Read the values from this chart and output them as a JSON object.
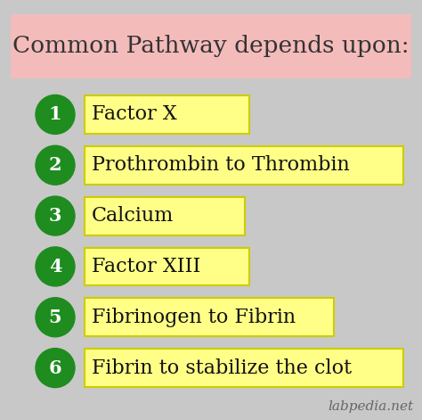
{
  "title": "Common Pathway depends upon:",
  "title_bg": "#F4BBBB",
  "title_color": "#333333",
  "title_fontsize": 19,
  "bg_color": "#C8C8C8",
  "items": [
    "Factor X",
    "Prothrombin to Thrombin",
    "Calcium",
    "Factor XIII",
    "Fibrinogen to Fibrin",
    "Fibrin to stabilize the clot"
  ],
  "item_bg": "#FFFF88",
  "item_border": "#CCCC00",
  "item_color": "#111111",
  "circle_color": "#1E8C1E",
  "circle_text_color": "#FFFFFF",
  "item_fontsize": 16,
  "number_fontsize": 15,
  "watermark": "labpedia.net",
  "watermark_color": "#666666",
  "watermark_fontsize": 11,
  "fig_width": 4.74,
  "fig_height": 4.71,
  "dpi": 100
}
